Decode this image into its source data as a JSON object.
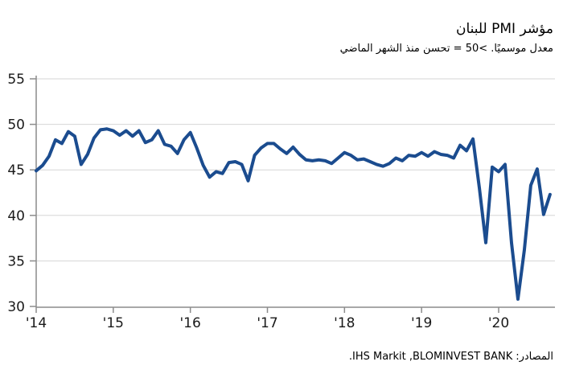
{
  "header": {
    "title": "مؤشر PMI للبنان",
    "subtitle": "معدل موسميًا. >50 = تحسن منذ الشهر الماضي"
  },
  "source": {
    "label_ar": "المصادر:",
    "agencies_latin": ".IHS Markit ,BLOMINVEST BANK"
  },
  "colors": {
    "line": "#1b4c8f",
    "grid": "#d6d6d6",
    "axis": "#8c8c8c",
    "text": "#1a1a1a"
  },
  "chart_data": {
    "type": "line",
    "title": "مؤشر PMI للبنان",
    "subtitle": "معدل موسميًا. >50 = تحسن منذ الشهر الماضي",
    "xlabel": "",
    "ylabel": "",
    "ylim": [
      30,
      55
    ],
    "y_ticks": [
      55,
      50,
      45,
      40,
      35,
      30
    ],
    "grid": "horizontal",
    "legend": "none",
    "x_tick_labels": [
      "'14",
      "'15",
      "'16",
      "'17",
      "'18",
      "'19",
      "'20"
    ],
    "x_start": "2014-01",
    "x_end": "2020-09",
    "frequency": "monthly",
    "series": [
      {
        "name": "Lebanon PMI",
        "values": [
          44.9,
          45.5,
          46.5,
          48.3,
          47.9,
          49.2,
          48.7,
          45.6,
          46.7,
          48.5,
          49.4,
          49.5,
          49.3,
          48.8,
          49.3,
          48.7,
          49.3,
          48.0,
          48.3,
          49.3,
          47.8,
          47.6,
          46.8,
          48.3,
          49.1,
          47.4,
          45.5,
          44.2,
          44.8,
          44.6,
          45.8,
          45.9,
          45.6,
          43.8,
          46.6,
          47.4,
          47.9,
          47.9,
          47.3,
          46.8,
          47.5,
          46.7,
          46.1,
          46.0,
          46.1,
          46.0,
          45.7,
          46.3,
          46.9,
          46.6,
          46.1,
          46.2,
          45.9,
          45.6,
          45.4,
          45.7,
          46.3,
          46.0,
          46.6,
          46.5,
          46.9,
          46.5,
          47.0,
          46.7,
          46.6,
          46.3,
          47.7,
          47.1,
          48.4,
          43.0,
          37.0,
          45.3,
          44.8,
          45.6,
          37.0,
          30.8,
          36.2,
          43.3,
          45.1,
          40.1,
          42.3
        ]
      }
    ]
  }
}
